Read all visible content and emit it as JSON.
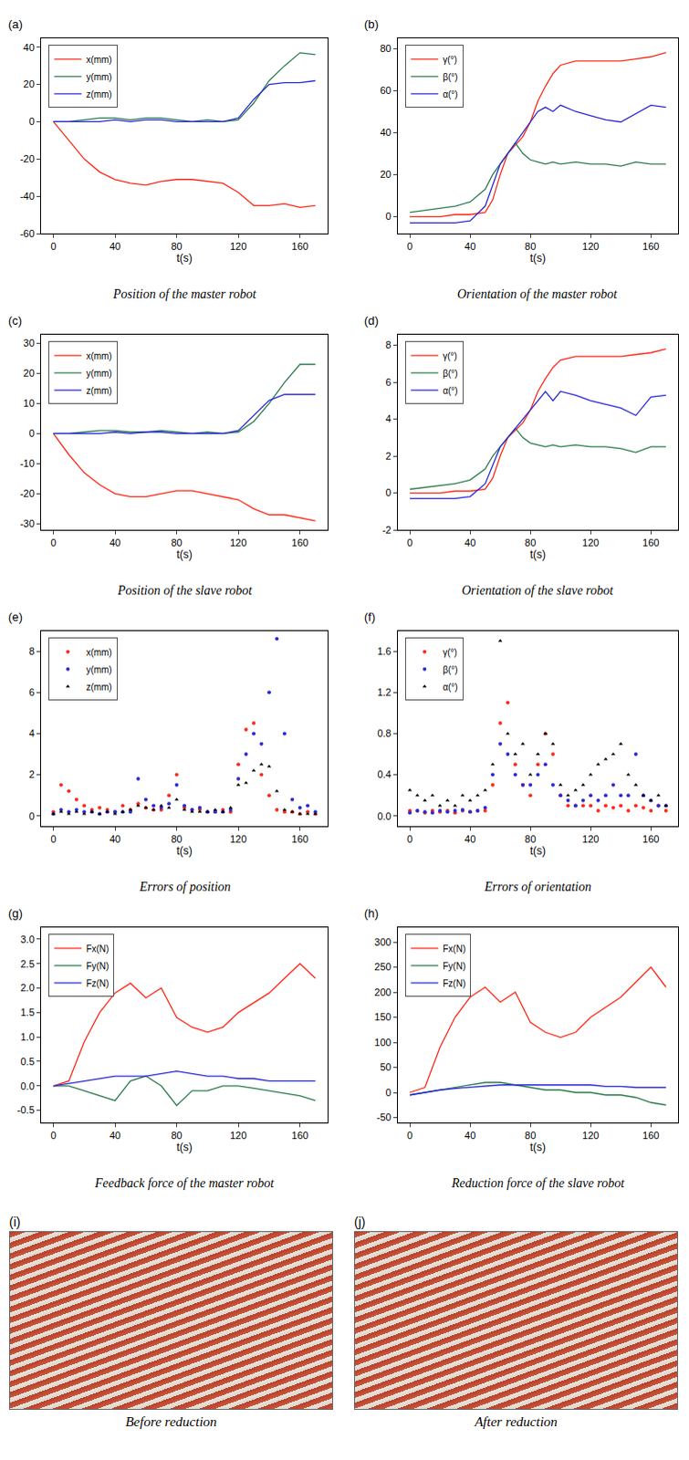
{
  "chart_data": [
    {
      "type": "line",
      "panel_label": "(a)",
      "title": "Position of the master robot",
      "x_label": "t(s)",
      "x": [
        0,
        10,
        20,
        30,
        40,
        50,
        60,
        70,
        80,
        90,
        100,
        110,
        120,
        130,
        140,
        150,
        160,
        170
      ],
      "series": [
        {
          "name": "x(mm)",
          "color": "#ff2a1a",
          "values": [
            0,
            -10,
            -20,
            -27,
            -31,
            -33,
            -34,
            -32,
            -31,
            -31,
            -32,
            -33,
            -38,
            -45,
            -45,
            -44,
            -46,
            -45
          ]
        },
        {
          "name": "y(mm)",
          "color": "#2e7d4f",
          "values": [
            0,
            0,
            1,
            2,
            2,
            1,
            2,
            2,
            1,
            0,
            1,
            0,
            1,
            10,
            22,
            30,
            37,
            36
          ]
        },
        {
          "name": "z(mm)",
          "color": "#2b2bd9",
          "values": [
            0,
            0,
            0,
            0,
            1,
            0,
            1,
            1,
            0,
            0,
            0,
            0,
            2,
            12,
            20,
            21,
            21,
            22
          ]
        }
      ],
      "xlim": [
        -8,
        178
      ],
      "xticks": [
        0,
        40,
        80,
        120,
        160
      ],
      "ylim": [
        -60,
        45
      ],
      "yticks": [
        -60,
        -40,
        -20,
        0,
        20,
        40
      ],
      "grid": false,
      "legend": "top-left"
    },
    {
      "type": "line",
      "panel_label": "(b)",
      "title": "Orientation of the master robot",
      "x_label": "t(s)",
      "x": [
        0,
        10,
        20,
        30,
        40,
        50,
        55,
        60,
        65,
        70,
        75,
        80,
        85,
        90,
        95,
        100,
        110,
        120,
        130,
        140,
        150,
        160,
        170
      ],
      "series": [
        {
          "name": "γ(°)",
          "color": "#ff2a1a",
          "values": [
            0,
            0,
            0,
            1,
            1,
            2,
            8,
            20,
            30,
            34,
            38,
            45,
            55,
            62,
            68,
            72,
            74,
            74,
            74,
            74,
            75,
            76,
            78
          ]
        },
        {
          "name": "β(°)",
          "color": "#2e7d4f",
          "values": [
            2,
            3,
            4,
            5,
            7,
            13,
            20,
            25,
            30,
            35,
            30,
            27,
            26,
            25,
            26,
            25,
            26,
            25,
            25,
            24,
            26,
            25,
            25
          ]
        },
        {
          "name": "α(°)",
          "color": "#2b2bd9",
          "values": [
            -3,
            -3,
            -3,
            -3,
            -2,
            5,
            15,
            25,
            30,
            35,
            40,
            45,
            50,
            52,
            50,
            53,
            50,
            48,
            46,
            45,
            49,
            53,
            52
          ]
        }
      ],
      "xlim": [
        -8,
        178
      ],
      "xticks": [
        0,
        40,
        80,
        120,
        160
      ],
      "ylim": [
        -8,
        85
      ],
      "yticks": [
        0,
        20,
        40,
        60,
        80
      ],
      "grid": false,
      "legend": "top-left"
    },
    {
      "type": "line",
      "panel_label": "(c)",
      "title": "Position of the slave robot",
      "x_label": "t(s)",
      "x": [
        0,
        10,
        20,
        30,
        40,
        50,
        60,
        70,
        80,
        90,
        100,
        110,
        120,
        130,
        140,
        150,
        160,
        170
      ],
      "series": [
        {
          "name": "x(mm)",
          "color": "#ff2a1a",
          "values": [
            0,
            -7,
            -13,
            -17,
            -20,
            -21,
            -21,
            -20,
            -19,
            -19,
            -20,
            -21,
            -22,
            -25,
            -27,
            -27,
            -28,
            -29
          ]
        },
        {
          "name": "y(mm)",
          "color": "#2e7d4f",
          "values": [
            0,
            0,
            0.5,
            1,
            1,
            0.5,
            0.5,
            1,
            0.5,
            0,
            0.5,
            0,
            0.5,
            4,
            10,
            17,
            23,
            23
          ]
        },
        {
          "name": "z(mm)",
          "color": "#2b2bd9",
          "values": [
            0,
            0,
            0,
            0,
            0.5,
            0,
            0.5,
            0.5,
            0,
            0,
            0,
            0,
            1,
            6,
            11,
            13,
            13,
            13
          ]
        }
      ],
      "xlim": [
        -8,
        178
      ],
      "xticks": [
        0,
        40,
        80,
        120,
        160
      ],
      "ylim": [
        -32,
        33
      ],
      "yticks": [
        -30,
        -20,
        -10,
        0,
        10,
        20,
        30
      ],
      "grid": false,
      "legend": "top-left"
    },
    {
      "type": "line",
      "panel_label": "(d)",
      "title": "Orientation of the slave robot",
      "x_label": "t(s)",
      "x": [
        0,
        10,
        20,
        30,
        40,
        50,
        55,
        60,
        65,
        70,
        75,
        80,
        85,
        90,
        95,
        100,
        110,
        120,
        130,
        140,
        150,
        160,
        170
      ],
      "series": [
        {
          "name": "γ(°)",
          "color": "#ff2a1a",
          "values": [
            0,
            0,
            0,
            0.1,
            0.1,
            0.2,
            0.8,
            2,
            3,
            3.4,
            3.8,
            4.5,
            5.5,
            6.2,
            6.8,
            7.2,
            7.4,
            7.4,
            7.4,
            7.4,
            7.5,
            7.6,
            7.8
          ]
        },
        {
          "name": "β(°)",
          "color": "#2e7d4f",
          "values": [
            0.2,
            0.3,
            0.4,
            0.5,
            0.7,
            1.3,
            2,
            2.5,
            3,
            3.5,
            3,
            2.7,
            2.6,
            2.5,
            2.6,
            2.5,
            2.6,
            2.5,
            2.5,
            2.4,
            2.2,
            2.5,
            2.5
          ]
        },
        {
          "name": "α(°)",
          "color": "#2b2bd9",
          "values": [
            -0.3,
            -0.3,
            -0.3,
            -0.3,
            -0.2,
            0.5,
            1.5,
            2.5,
            3,
            3.5,
            4.0,
            4.5,
            5,
            5.5,
            5,
            5.5,
            5.3,
            5,
            4.8,
            4.6,
            4.2,
            5.2,
            5.3
          ]
        }
      ],
      "xlim": [
        -8,
        178
      ],
      "xticks": [
        0,
        40,
        80,
        120,
        160
      ],
      "ylim": [
        -2,
        8.6
      ],
      "yticks": [
        -2,
        0,
        2,
        4,
        6,
        8
      ],
      "grid": false,
      "legend": "top-left"
    },
    {
      "type": "scatter",
      "panel_label": "(e)",
      "title": "Errors of position",
      "x_label": "t(s)",
      "x": [
        0,
        5,
        10,
        15,
        20,
        25,
        30,
        35,
        40,
        45,
        50,
        55,
        60,
        65,
        70,
        75,
        80,
        85,
        90,
        95,
        100,
        105,
        110,
        115,
        120,
        125,
        130,
        135,
        140,
        145,
        150,
        155,
        160,
        165,
        170
      ],
      "series": [
        {
          "name": "x(mm)",
          "color": "#ff2a1a",
          "marker": "circle",
          "values": [
            0.2,
            1.5,
            1.2,
            0.8,
            0.5,
            0.3,
            0.4,
            0.3,
            0.2,
            0.5,
            0.3,
            0.6,
            0.4,
            0.3,
            0.3,
            1.0,
            2.0,
            0.4,
            0.3,
            0.3,
            0.2,
            0.2,
            0.3,
            0.2,
            2.5,
            4.2,
            4.5,
            2.0,
            1.0,
            0.3,
            0.2,
            0.2,
            0.1,
            0.2,
            0.1
          ]
        },
        {
          "name": "y(mm)",
          "color": "#2b2bd9",
          "marker": "circle",
          "values": [
            0.1,
            0.3,
            0.2,
            0.3,
            0.2,
            0.2,
            0.1,
            0.2,
            0.2,
            0.2,
            0.2,
            1.8,
            0.8,
            0.5,
            0.4,
            0.6,
            1.5,
            0.5,
            0.3,
            0.4,
            0.2,
            0.2,
            0.2,
            0.3,
            1.8,
            3.0,
            4.0,
            3.5,
            6.0,
            8.6,
            4.0,
            0.8,
            0.4,
            0.5,
            0.2
          ]
        },
        {
          "name": "z(mm)",
          "color": "#000000",
          "marker": "triangle-up",
          "values": [
            0.1,
            0.2,
            0.1,
            0.2,
            0.1,
            0.2,
            0.1,
            0.2,
            0.1,
            0.2,
            0.3,
            0.5,
            0.4,
            0.3,
            0.5,
            0.4,
            0.8,
            0.3,
            0.2,
            0.2,
            0.2,
            0.3,
            0.2,
            0.4,
            1.5,
            1.6,
            2.2,
            2.5,
            2.4,
            1.2,
            0.3,
            0.2,
            0.1,
            0.1,
            0.1
          ]
        }
      ],
      "xlim": [
        -8,
        178
      ],
      "xticks": [
        0,
        40,
        80,
        120,
        160
      ],
      "ylim": [
        -0.5,
        9
      ],
      "yticks": [
        0,
        2,
        4,
        6,
        8
      ],
      "grid": false,
      "legend": "top-left"
    },
    {
      "type": "scatter",
      "panel_label": "(f)",
      "title": "Errors of orientation",
      "x_label": "t(s)",
      "x": [
        0,
        5,
        10,
        15,
        20,
        25,
        30,
        35,
        40,
        45,
        50,
        55,
        60,
        65,
        70,
        75,
        80,
        85,
        90,
        95,
        100,
        105,
        110,
        115,
        120,
        125,
        130,
        135,
        140,
        145,
        150,
        155,
        160,
        165,
        170
      ],
      "series": [
        {
          "name": "γ(°)",
          "color": "#ff2a1a",
          "marker": "circle",
          "values": [
            0.05,
            0.05,
            0.03,
            0.05,
            0.04,
            0.05,
            0.03,
            0.05,
            0.04,
            0.05,
            0.05,
            0.3,
            0.9,
            1.1,
            0.5,
            0.3,
            0.2,
            0.5,
            0.8,
            0.6,
            0.2,
            0.1,
            0.1,
            0.1,
            0.1,
            0.05,
            0.1,
            0.08,
            0.1,
            0.05,
            0.1,
            0.08,
            0.05,
            0.1,
            0.05
          ]
        },
        {
          "name": "β(°)",
          "color": "#2b2bd9",
          "marker": "circle",
          "values": [
            0.03,
            0.05,
            0.04,
            0.03,
            0.05,
            0.04,
            0.05,
            0.06,
            0.04,
            0.05,
            0.08,
            0.4,
            0.7,
            0.6,
            0.4,
            0.3,
            0.3,
            0.4,
            0.5,
            0.3,
            0.2,
            0.15,
            0.1,
            0.15,
            0.2,
            0.15,
            0.2,
            0.3,
            0.2,
            0.2,
            0.6,
            0.2,
            0.15,
            0.1,
            0.1
          ]
        },
        {
          "name": "α(°)",
          "color": "#000000",
          "marker": "triangle-up",
          "values": [
            0.25,
            0.2,
            0.15,
            0.2,
            0.1,
            0.15,
            0.1,
            0.2,
            0.15,
            0.2,
            0.25,
            0.5,
            1.7,
            0.8,
            0.6,
            0.7,
            0.4,
            0.6,
            0.8,
            0.7,
            0.3,
            0.2,
            0.25,
            0.3,
            0.4,
            0.5,
            0.55,
            0.6,
            0.7,
            0.4,
            0.3,
            0.2,
            0.15,
            0.2,
            0.1
          ]
        }
      ],
      "xlim": [
        -8,
        178
      ],
      "xticks": [
        0,
        40,
        80,
        120,
        160
      ],
      "ylim": [
        -0.1,
        1.8
      ],
      "yticks": [
        {
          "value": 0,
          "label": "0.0"
        },
        0.4,
        0.8,
        1.2,
        1.6
      ],
      "grid": false,
      "legend": "top-left"
    },
    {
      "type": "line",
      "panel_label": "(g)",
      "title": "Feedback force of the master robot",
      "x_label": "t(s)",
      "x": [
        0,
        10,
        20,
        30,
        40,
        50,
        60,
        70,
        80,
        90,
        100,
        110,
        120,
        130,
        140,
        150,
        160,
        170
      ],
      "series": [
        {
          "name": "Fx(N)",
          "color": "#ff2a1a",
          "values": [
            0,
            0.1,
            0.9,
            1.5,
            1.9,
            2.1,
            1.8,
            2.0,
            1.4,
            1.2,
            1.1,
            1.2,
            1.5,
            1.7,
            1.9,
            2.2,
            2.5,
            2.2
          ]
        },
        {
          "name": "Fy(N)",
          "color": "#2e7d4f",
          "values": [
            0,
            0,
            -0.1,
            -0.2,
            -0.3,
            0.1,
            0.2,
            0,
            -0.4,
            -0.1,
            -0.1,
            0,
            0,
            -0.05,
            -0.1,
            -0.15,
            -0.2,
            -0.3
          ]
        },
        {
          "name": "Fz(N)",
          "color": "#2b2bd9",
          "values": [
            0,
            0.05,
            0.1,
            0.15,
            0.2,
            0.2,
            0.2,
            0.25,
            0.3,
            0.25,
            0.2,
            0.2,
            0.15,
            0.15,
            0.1,
            0.1,
            0.1,
            0.1
          ]
        }
      ],
      "xlim": [
        -8,
        178
      ],
      "xticks": [
        0,
        40,
        80,
        120,
        160
      ],
      "ylim": [
        -0.75,
        3.25
      ],
      "yticks": [
        -0.5,
        {
          "value": 0,
          "label": "0.0"
        },
        0.5,
        {
          "value": 1,
          "label": "1.0"
        },
        1.5,
        {
          "value": 2,
          "label": "2.0"
        },
        2.5,
        {
          "value": 3,
          "label": "3.0"
        }
      ],
      "grid": false,
      "legend": "top-left"
    },
    {
      "type": "line",
      "panel_label": "(h)",
      "title": "Reduction force of the slave robot",
      "x_label": "t(s)",
      "x": [
        0,
        10,
        20,
        30,
        40,
        50,
        60,
        70,
        80,
        90,
        100,
        110,
        120,
        130,
        140,
        150,
        160,
        170
      ],
      "series": [
        {
          "name": "Fx(N)",
          "color": "#ff2a1a",
          "values": [
            0,
            10,
            90,
            150,
            190,
            210,
            180,
            200,
            140,
            120,
            110,
            120,
            150,
            170,
            190,
            220,
            250,
            210
          ]
        },
        {
          "name": "Fy(N)",
          "color": "#2e7d4f",
          "values": [
            -5,
            0,
            5,
            10,
            15,
            20,
            20,
            15,
            10,
            5,
            5,
            0,
            0,
            -5,
            -5,
            -10,
            -20,
            -25
          ]
        },
        {
          "name": "Fz(N)",
          "color": "#2b2bd9",
          "values": [
            -5,
            0,
            5,
            8,
            10,
            12,
            15,
            15,
            15,
            15,
            15,
            15,
            15,
            12,
            12,
            10,
            10,
            10
          ]
        }
      ],
      "xlim": [
        -8,
        178
      ],
      "xticks": [
        0,
        40,
        80,
        120,
        160
      ],
      "ylim": [
        -60,
        330
      ],
      "yticks": [
        -50,
        0,
        50,
        100,
        150,
        200,
        250,
        300
      ],
      "grid": false,
      "legend": "top-left"
    }
  ],
  "photos": [
    {
      "panel_label": "(i)",
      "caption": "Before reduction"
    },
    {
      "panel_label": "(j)",
      "caption": "After reduction"
    }
  ]
}
